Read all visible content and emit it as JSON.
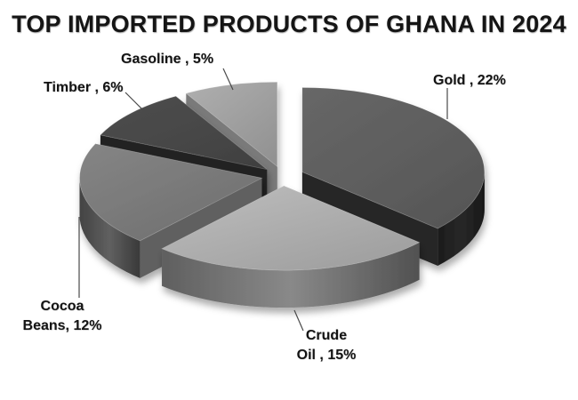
{
  "chart_data": {
    "type": "pie",
    "style": "3d-exploded",
    "title": "TOP IMPORTED PRODUCTS OF GHANA IN 2024",
    "unit": "%",
    "start_angle_deg": 0,
    "clockwise": true,
    "legend": "none",
    "background": "#ffffff",
    "text_color": "#141414",
    "categories": [
      "Gold",
      "Crude Oil",
      "Cocoa Beans",
      "Timber",
      "Gasoline"
    ],
    "values": [
      22,
      15,
      12,
      6,
      5
    ],
    "slices": [
      {
        "label": "Gold",
        "value": 22,
        "display": "Gold , 22%",
        "lines": [
          "Gold , 22%"
        ],
        "top_color": "#5f5f5f",
        "side_color": "#242424"
      },
      {
        "label": "Crude Oil",
        "value": 15,
        "display": "Crude Oil , 15%",
        "lines": [
          "Crude",
          "Oil , 15%"
        ],
        "top_color": "#b0b0b0",
        "side_color": "#7a7a7a"
      },
      {
        "label": "Cocoa Beans",
        "value": 12,
        "display": "Cocoa Beans, 12%",
        "lines": [
          "Cocoa",
          "Beans, 12%"
        ],
        "top_color": "#7b7b7b",
        "side_color": "#565656"
      },
      {
        "label": "Timber",
        "value": 6,
        "display": "Timber , 6%",
        "lines": [
          "Timber , 6%"
        ],
        "top_color": "#484848",
        "side_color": "#1f1f1f"
      },
      {
        "label": "Gasoline",
        "value": 5,
        "display": "Gasoline , 5%",
        "lines": [
          "Gasoline , 5%"
        ],
        "top_color": "#a2a2a2",
        "side_color": "#6d6d6d"
      }
    ]
  }
}
